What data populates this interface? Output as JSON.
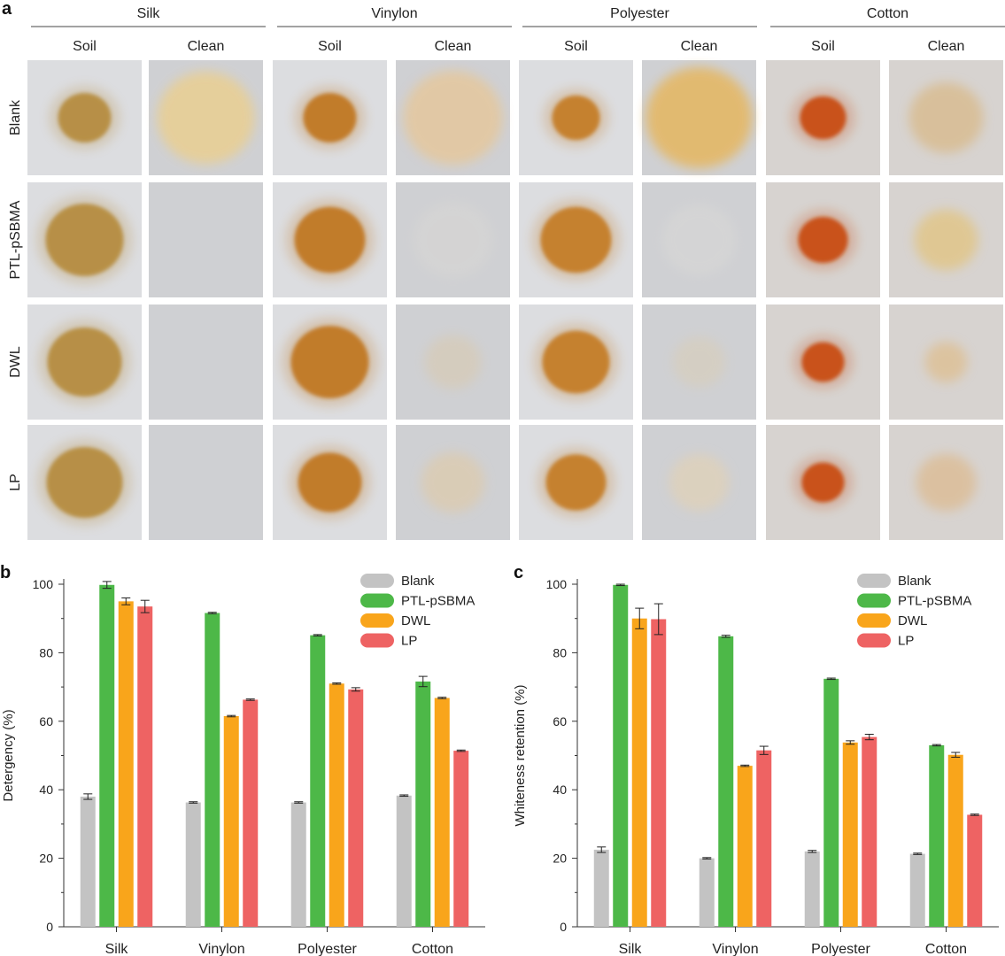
{
  "panel_a": {
    "letter": "a",
    "fabrics": [
      "Silk",
      "Vinylon",
      "Polyester",
      "Cotton"
    ],
    "conditions": [
      "Soil",
      "Clean"
    ],
    "rows": [
      "Blank",
      "PTL-pSBMA",
      "DWL",
      "LP"
    ],
    "colors": {
      "bg": "#d9dadc",
      "soil_silk": "#b58a3a",
      "soil_vinylon": "#c0751e",
      "soil_polyester": "#c47a22",
      "soil_cotton": "#c84a10",
      "clean_residue": "#e3c68a"
    }
  },
  "chart_data": [
    {
      "type": "bar",
      "panel": "b",
      "ylabel": "Detergency (%)",
      "xlabel": "",
      "ylim": [
        0,
        100
      ],
      "yticks": [
        0,
        20,
        40,
        60,
        80,
        100
      ],
      "categories": [
        "Silk",
        "Vinylon",
        "Polyester",
        "Cotton"
      ],
      "series": [
        {
          "name": "Blank",
          "color": "#c3c3c3",
          "values": [
            38.0,
            36.3,
            36.3,
            38.3
          ],
          "errors": [
            0.8,
            0.2,
            0.2,
            0.2
          ]
        },
        {
          "name": "PTL-pSBMA",
          "color": "#4db848",
          "values": [
            99.8,
            91.6,
            85.1,
            71.6
          ],
          "errors": [
            1.0,
            0.2,
            0.2,
            1.5
          ]
        },
        {
          "name": "DWL",
          "color": "#f9a51b",
          "values": [
            95.0,
            61.5,
            71.0,
            66.8
          ],
          "errors": [
            1.0,
            0.2,
            0.2,
            0.2
          ]
        },
        {
          "name": "LP",
          "color": "#ee6363",
          "values": [
            93.5,
            66.3,
            69.3,
            51.4
          ],
          "errors": [
            1.8,
            0.2,
            0.5,
            0.2
          ]
        }
      ],
      "legend": "top-right"
    },
    {
      "type": "bar",
      "panel": "c",
      "ylabel": "Whiteness retention (%)",
      "xlabel": "",
      "ylim": [
        0,
        100
      ],
      "yticks": [
        0,
        20,
        40,
        60,
        80,
        100
      ],
      "categories": [
        "Silk",
        "Vinylon",
        "Polyester",
        "Cotton"
      ],
      "series": [
        {
          "name": "Blank",
          "color": "#c3c3c3",
          "values": [
            22.5,
            20.0,
            22.0,
            21.3
          ],
          "errors": [
            0.8,
            0.2,
            0.3,
            0.2
          ]
        },
        {
          "name": "PTL-pSBMA",
          "color": "#4db848",
          "values": [
            99.8,
            84.8,
            72.4,
            53.0
          ],
          "errors": [
            0.2,
            0.3,
            0.2,
            0.2
          ]
        },
        {
          "name": "DWL",
          "color": "#f9a51b",
          "values": [
            90.0,
            47.0,
            53.8,
            50.2
          ],
          "errors": [
            3.0,
            0.2,
            0.5,
            0.7
          ]
        },
        {
          "name": "LP",
          "color": "#ee6363",
          "values": [
            89.8,
            51.5,
            55.4,
            32.7
          ],
          "errors": [
            4.5,
            1.2,
            0.8,
            0.2
          ]
        }
      ],
      "legend": "top-right"
    }
  ]
}
